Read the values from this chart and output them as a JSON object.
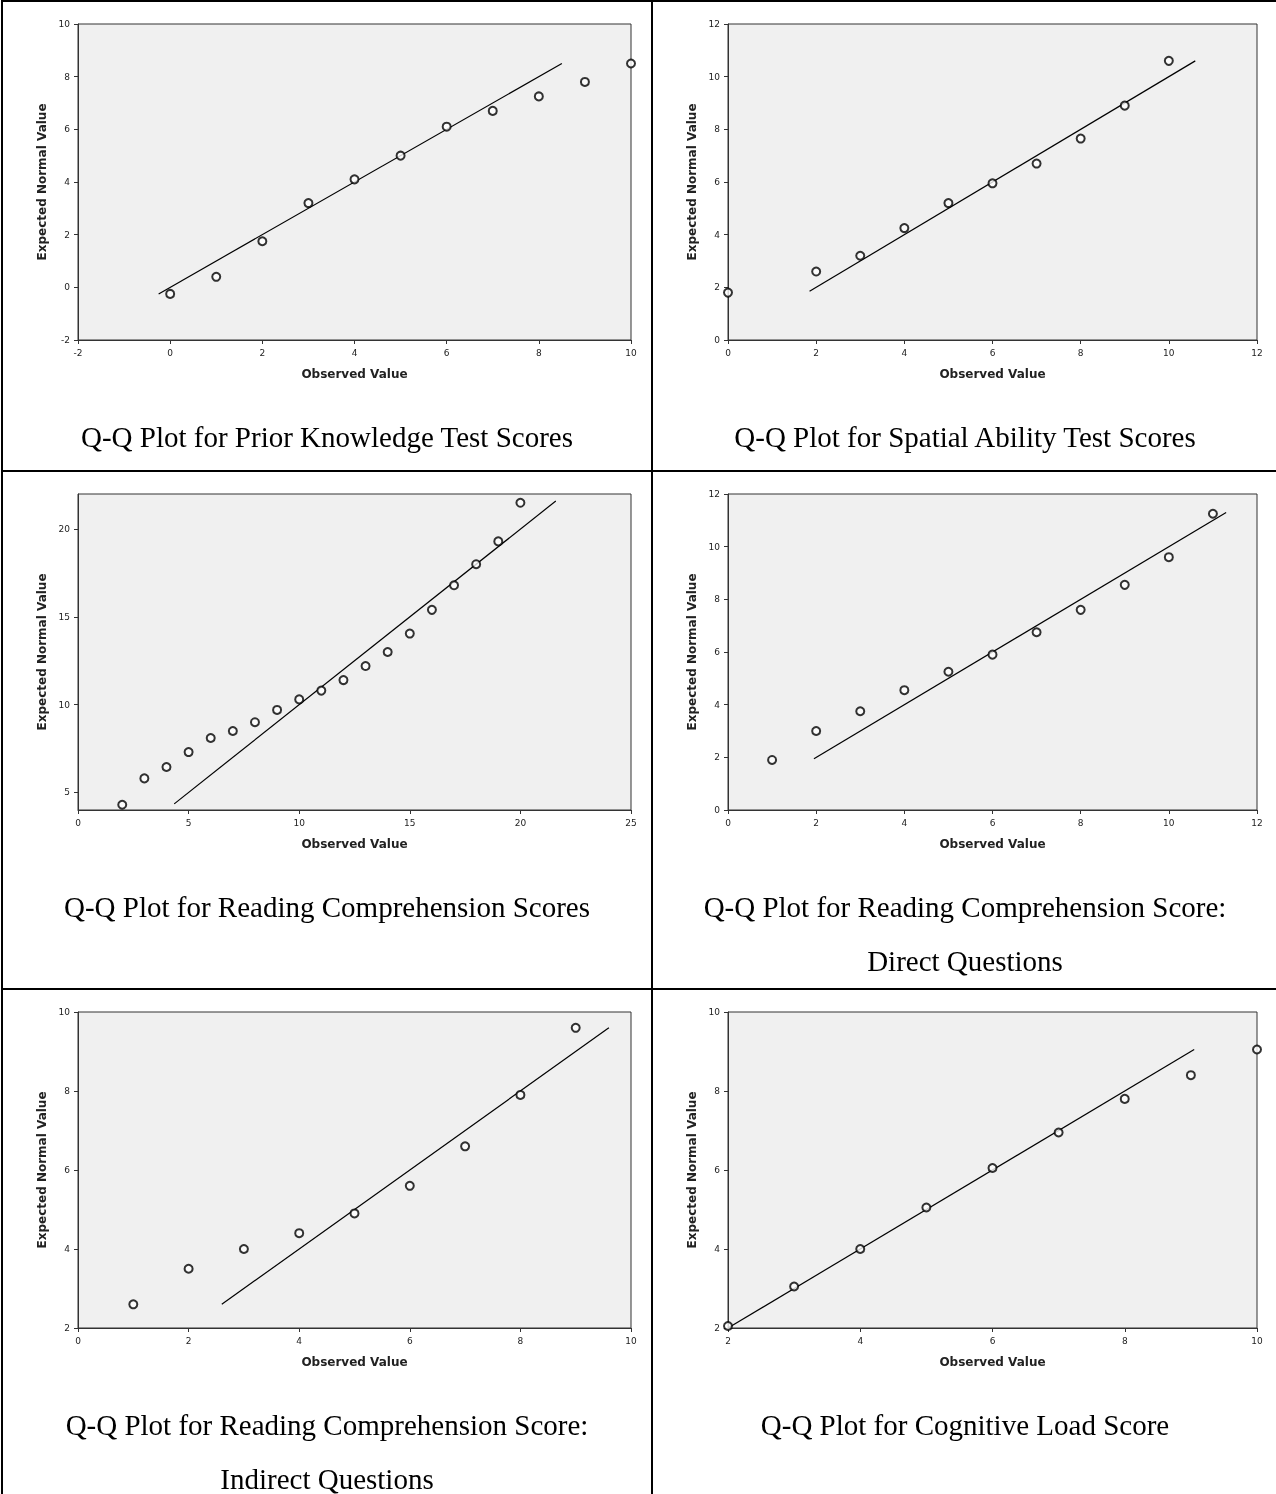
{
  "chart_data": [
    {
      "type": "scatter",
      "title": "Q-Q Plot for Prior Knowledge Test Scores",
      "xlabel": "Observed Value",
      "ylabel": "Expected Normal Value",
      "xlim": [
        -2,
        10
      ],
      "ylim": [
        -2,
        10
      ],
      "xticks": [
        -2,
        0,
        2,
        4,
        6,
        8,
        10
      ],
      "yticks": [
        -2,
        0,
        2,
        4,
        6,
        8,
        10
      ],
      "series": [
        {
          "marker": "circle",
          "color": "#000000",
          "x": [
            0,
            1,
            2,
            3,
            4,
            5,
            6,
            7,
            8,
            9,
            10
          ],
          "values": [
            -0.25,
            0.4,
            1.75,
            3.2,
            4.1,
            5.0,
            6.1,
            6.7,
            7.25,
            7.8,
            8.5
          ]
        },
        {
          "type": "line",
          "marker": "none",
          "color": "#000000",
          "x": [
            -0.25,
            8.5
          ],
          "values": [
            -0.25,
            8.5
          ]
        }
      ]
    },
    {
      "type": "scatter",
      "title": "Q-Q Plot for Spatial Ability Test Scores",
      "xlabel": "Observed Value",
      "ylabel": "Expected Normal Value",
      "xlim": [
        0,
        12
      ],
      "ylim": [
        0,
        12
      ],
      "xticks": [
        0,
        2,
        4,
        6,
        8,
        10,
        12
      ],
      "yticks": [
        0,
        2,
        4,
        6,
        8,
        10,
        12
      ],
      "series": [
        {
          "marker": "circle",
          "color": "#000000",
          "x": [
            0,
            2,
            3,
            4,
            5,
            6,
            7,
            8,
            9,
            10
          ],
          "values": [
            1.8,
            2.6,
            3.2,
            4.25,
            5.2,
            5.95,
            6.7,
            7.65,
            8.9,
            10.6
          ]
        },
        {
          "type": "line",
          "marker": "none",
          "color": "#000000",
          "x": [
            1.85,
            10.6
          ],
          "values": [
            1.85,
            10.6
          ]
        }
      ]
    },
    {
      "type": "scatter",
      "title": "Q-Q Plot for Reading Comprehension Scores",
      "xlabel": "Observed Value",
      "ylabel": "Expected Normal Value",
      "xlim": [
        0,
        25
      ],
      "ylim": [
        4,
        22
      ],
      "xticks": [
        0,
        5,
        10,
        15,
        20,
        25
      ],
      "yticks": [
        5,
        10,
        15,
        20
      ],
      "series": [
        {
          "marker": "circle",
          "color": "#000000",
          "x": [
            2,
            3,
            4,
            5,
            6,
            7,
            8,
            9,
            10,
            11,
            12,
            13,
            14,
            15,
            16,
            17,
            18,
            19,
            20
          ],
          "values": [
            4.3,
            5.8,
            6.45,
            7.3,
            8.1,
            8.5,
            9.0,
            9.7,
            10.3,
            10.8,
            11.4,
            12.2,
            13.0,
            14.05,
            15.4,
            16.8,
            18.0,
            19.3,
            21.5
          ]
        },
        {
          "type": "line",
          "marker": "none",
          "color": "#000000",
          "x": [
            4.35,
            21.6
          ],
          "values": [
            4.35,
            21.6
          ]
        }
      ]
    },
    {
      "type": "scatter",
      "title": "Q-Q Plot for Reading Comprehension Score: Direct Questions",
      "xlabel": "Observed Value",
      "ylabel": "Expected Normal Value",
      "xlim": [
        0,
        12
      ],
      "ylim": [
        0,
        12
      ],
      "xticks": [
        0,
        2,
        4,
        6,
        8,
        10,
        12
      ],
      "yticks": [
        0,
        2,
        4,
        6,
        8,
        10,
        12
      ],
      "series": [
        {
          "marker": "circle",
          "color": "#000000",
          "x": [
            1,
            2,
            3,
            4,
            5,
            6,
            7,
            8,
            9,
            10,
            11
          ],
          "values": [
            1.9,
            3.0,
            3.75,
            4.55,
            5.25,
            5.9,
            6.75,
            7.6,
            8.55,
            9.6,
            11.25
          ]
        },
        {
          "type": "line",
          "marker": "none",
          "color": "#000000",
          "x": [
            1.95,
            11.3
          ],
          "values": [
            1.95,
            11.3
          ]
        }
      ]
    },
    {
      "type": "scatter",
      "title": "Q-Q Plot for Reading Comprehension Score: Indirect Questions",
      "xlabel": "Observed Value",
      "ylabel": "Expected Normal Value",
      "xlim": [
        0,
        10
      ],
      "ylim": [
        2,
        10
      ],
      "xticks": [
        0,
        2,
        4,
        6,
        8,
        10
      ],
      "yticks": [
        2,
        4,
        6,
        8,
        10
      ],
      "series": [
        {
          "marker": "circle",
          "color": "#000000",
          "x": [
            1,
            2,
            3,
            4,
            5,
            6,
            7,
            8,
            9
          ],
          "values": [
            2.6,
            3.5,
            4.0,
            4.4,
            4.9,
            5.6,
            6.6,
            7.9,
            9.6
          ]
        },
        {
          "type": "line",
          "marker": "none",
          "color": "#000000",
          "x": [
            2.6,
            9.6
          ],
          "values": [
            2.6,
            9.6
          ]
        }
      ]
    },
    {
      "type": "scatter",
      "title": "Q-Q Plot for Cognitive Load Score",
      "xlabel": "Observed Value",
      "ylabel": "Expected Normal Value",
      "xlim": [
        2,
        10
      ],
      "ylim": [
        2,
        10
      ],
      "xticks": [
        2,
        4,
        6,
        8,
        10
      ],
      "yticks": [
        2,
        4,
        6,
        8,
        10
      ],
      "series": [
        {
          "marker": "circle",
          "color": "#000000",
          "x": [
            2,
            3,
            4,
            5,
            6,
            7,
            8,
            9,
            10
          ],
          "values": [
            2.05,
            3.05,
            4.0,
            5.05,
            6.05,
            6.95,
            7.8,
            8.4,
            9.05
          ]
        },
        {
          "type": "line",
          "marker": "none",
          "color": "#000000",
          "x": [
            2,
            9.05
          ],
          "values": [
            2,
            9.05
          ]
        }
      ]
    }
  ]
}
